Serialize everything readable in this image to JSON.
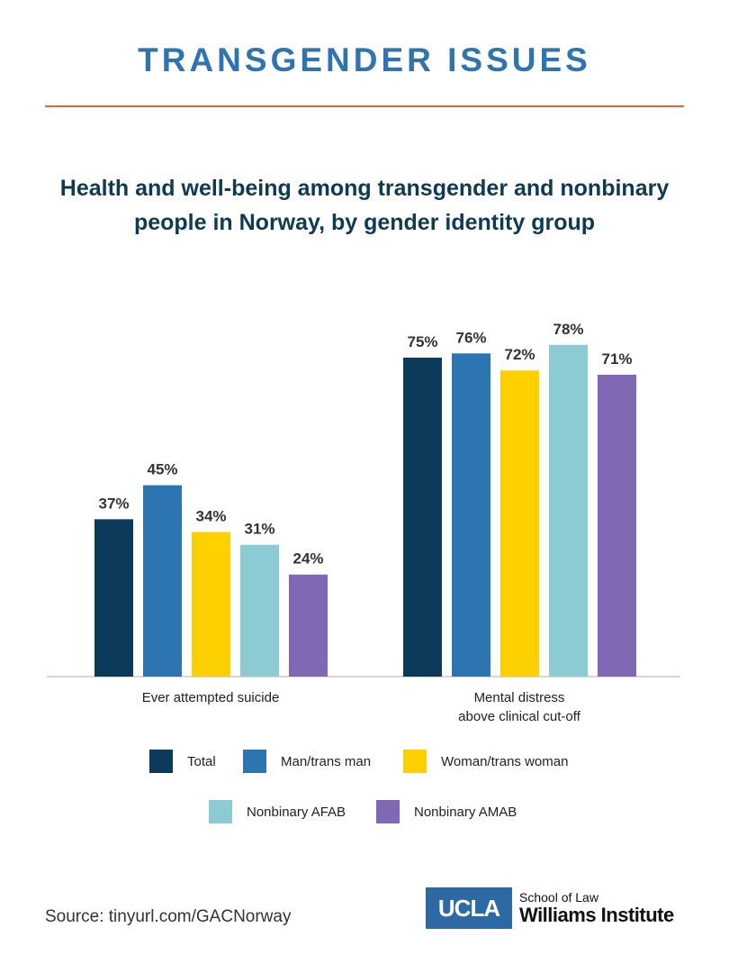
{
  "header": "TRANSGENDER ISSUES",
  "chart_data": {
    "type": "bar",
    "title": "Health and well-being among transgender and nonbinary people in Norway, by gender identity group",
    "categories": [
      "Ever attempted suicide",
      "Mental distress above clinical cut-off"
    ],
    "series": [
      {
        "name": "Total",
        "values": [
          37,
          75
        ],
        "labels": [
          "37%",
          "75%"
        ],
        "color": "#0b3a5a"
      },
      {
        "name": "Man/trans man",
        "values": [
          45,
          76
        ],
        "labels": [
          "45%",
          "76%"
        ],
        "color": "#2d75b0"
      },
      {
        "name": "Woman/trans woman",
        "values": [
          34,
          72
        ],
        "labels": [
          "34%",
          "72%"
        ],
        "color": "#ffd000"
      },
      {
        "name": "Nonbinary AFAB",
        "values": [
          31,
          78
        ],
        "labels": [
          "31%",
          "78%"
        ],
        "color": "#8ccad4"
      },
      {
        "name": "Nonbinary AMAB",
        "values": [
          24,
          71
        ],
        "labels": [
          "24%",
          "71%"
        ],
        "color": "#8068b4"
      }
    ],
    "ylim": [
      0,
      100
    ],
    "grid": false,
    "legend_position": "bottom"
  },
  "source": "Source: tinyurl.com/GACNorway",
  "logo": {
    "badge": "UCLA",
    "school": "School of Law",
    "institute": "Williams Institute"
  }
}
